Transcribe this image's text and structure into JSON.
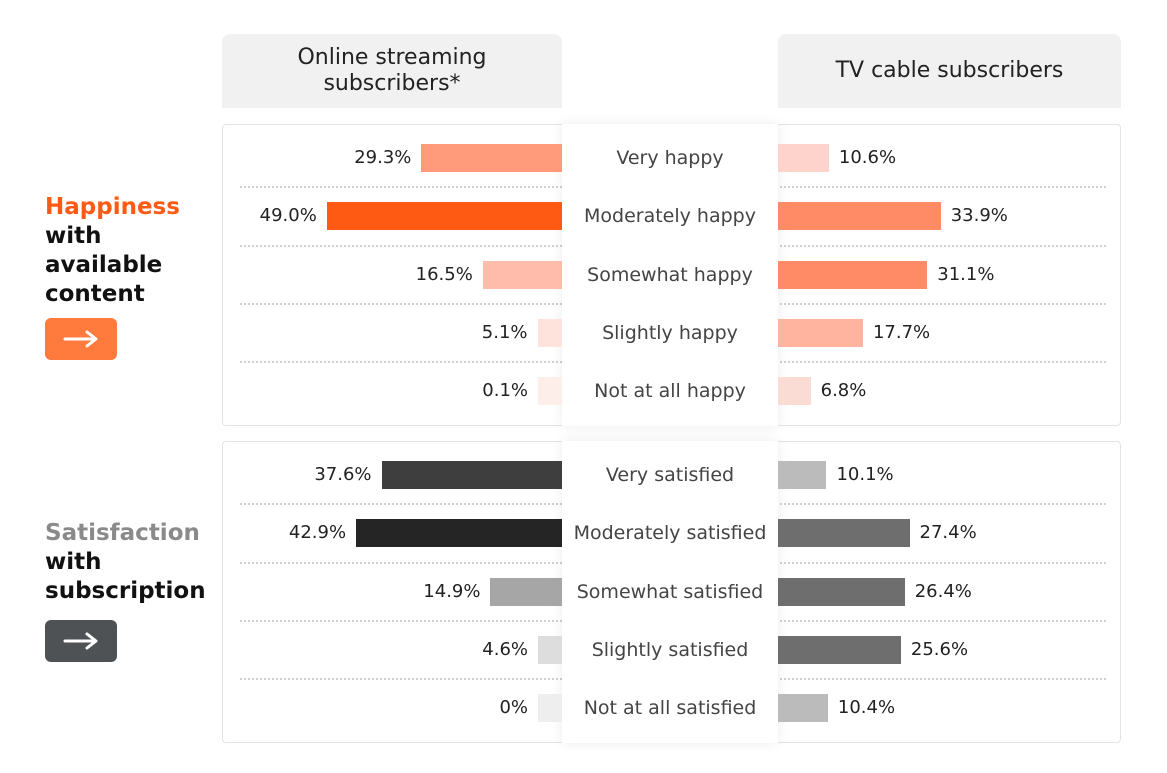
{
  "headers": {
    "left": "Online streaming\nsubscribers*",
    "right": "TV cable subscribers"
  },
  "sections": {
    "happiness": {
      "title_accent": "Happiness",
      "title_rest": "with\navailable\ncontent",
      "accent_color": "#ff5a14",
      "button_color": "#ff7a3d",
      "button_icon": "right-arrow-icon"
    },
    "satisfaction": {
      "title_accent": "Satisfaction",
      "title_rest": "with\nsubscription",
      "accent_color": "#8a8a8a",
      "button_color": "#4f5254",
      "button_icon": "right-arrow-icon"
    }
  },
  "chart_data": [
    {
      "type": "bar",
      "title": "Happiness with available content",
      "categories": [
        "Very happy",
        "Moderately happy",
        "Somewhat happy",
        "Slightly happy",
        "Not at all happy"
      ],
      "series": [
        {
          "name": "Online streaming subscribers*",
          "values": [
            29.3,
            49.0,
            16.5,
            5.1,
            0.1
          ],
          "labels": [
            "29.3%",
            "49.0%",
            "16.5%",
            "5.1%",
            "0.1%"
          ],
          "colors": [
            "#ff9b7a",
            "#ff5a14",
            "#ffbcaa",
            "#fde3dc",
            "#fdeee9"
          ]
        },
        {
          "name": "TV cable subscribers",
          "values": [
            10.6,
            33.9,
            31.1,
            17.7,
            6.8
          ],
          "labels": [
            "10.6%",
            "33.9%",
            "31.1%",
            "17.7%",
            "6.8%"
          ],
          "colors": [
            "#fdd3cc",
            "#ff8b66",
            "#ff8b66",
            "#ffb49f",
            "#fbdcd5"
          ]
        }
      ],
      "unit": "%",
      "xlim": [
        0,
        50
      ]
    },
    {
      "type": "bar",
      "title": "Satisfaction with subscription",
      "categories": [
        "Very satisfied",
        "Moderately satisfied",
        "Somewhat satisfied",
        "Slightly satisfied",
        "Not at all satisfied"
      ],
      "series": [
        {
          "name": "Online streaming subscribers*",
          "values": [
            37.6,
            42.9,
            14.9,
            4.6,
            0
          ],
          "labels": [
            "37.6%",
            "42.9%",
            "14.9%",
            "4.6%",
            "0%"
          ],
          "colors": [
            "#3e3e3e",
            "#252525",
            "#a6a6a6",
            "#dddddd",
            "#eeeeee"
          ]
        },
        {
          "name": "TV cable subscribers",
          "values": [
            10.1,
            27.4,
            26.4,
            25.6,
            10.4
          ],
          "labels": [
            "10.1%",
            "27.4%",
            "26.4%",
            "25.6%",
            "10.4%"
          ],
          "colors": [
            "#bbbbbb",
            "#6e6e6e",
            "#6e6e6e",
            "#6e6e6e",
            "#bbbbbb"
          ]
        }
      ],
      "unit": "%",
      "xlim": [
        0,
        50
      ]
    }
  ]
}
